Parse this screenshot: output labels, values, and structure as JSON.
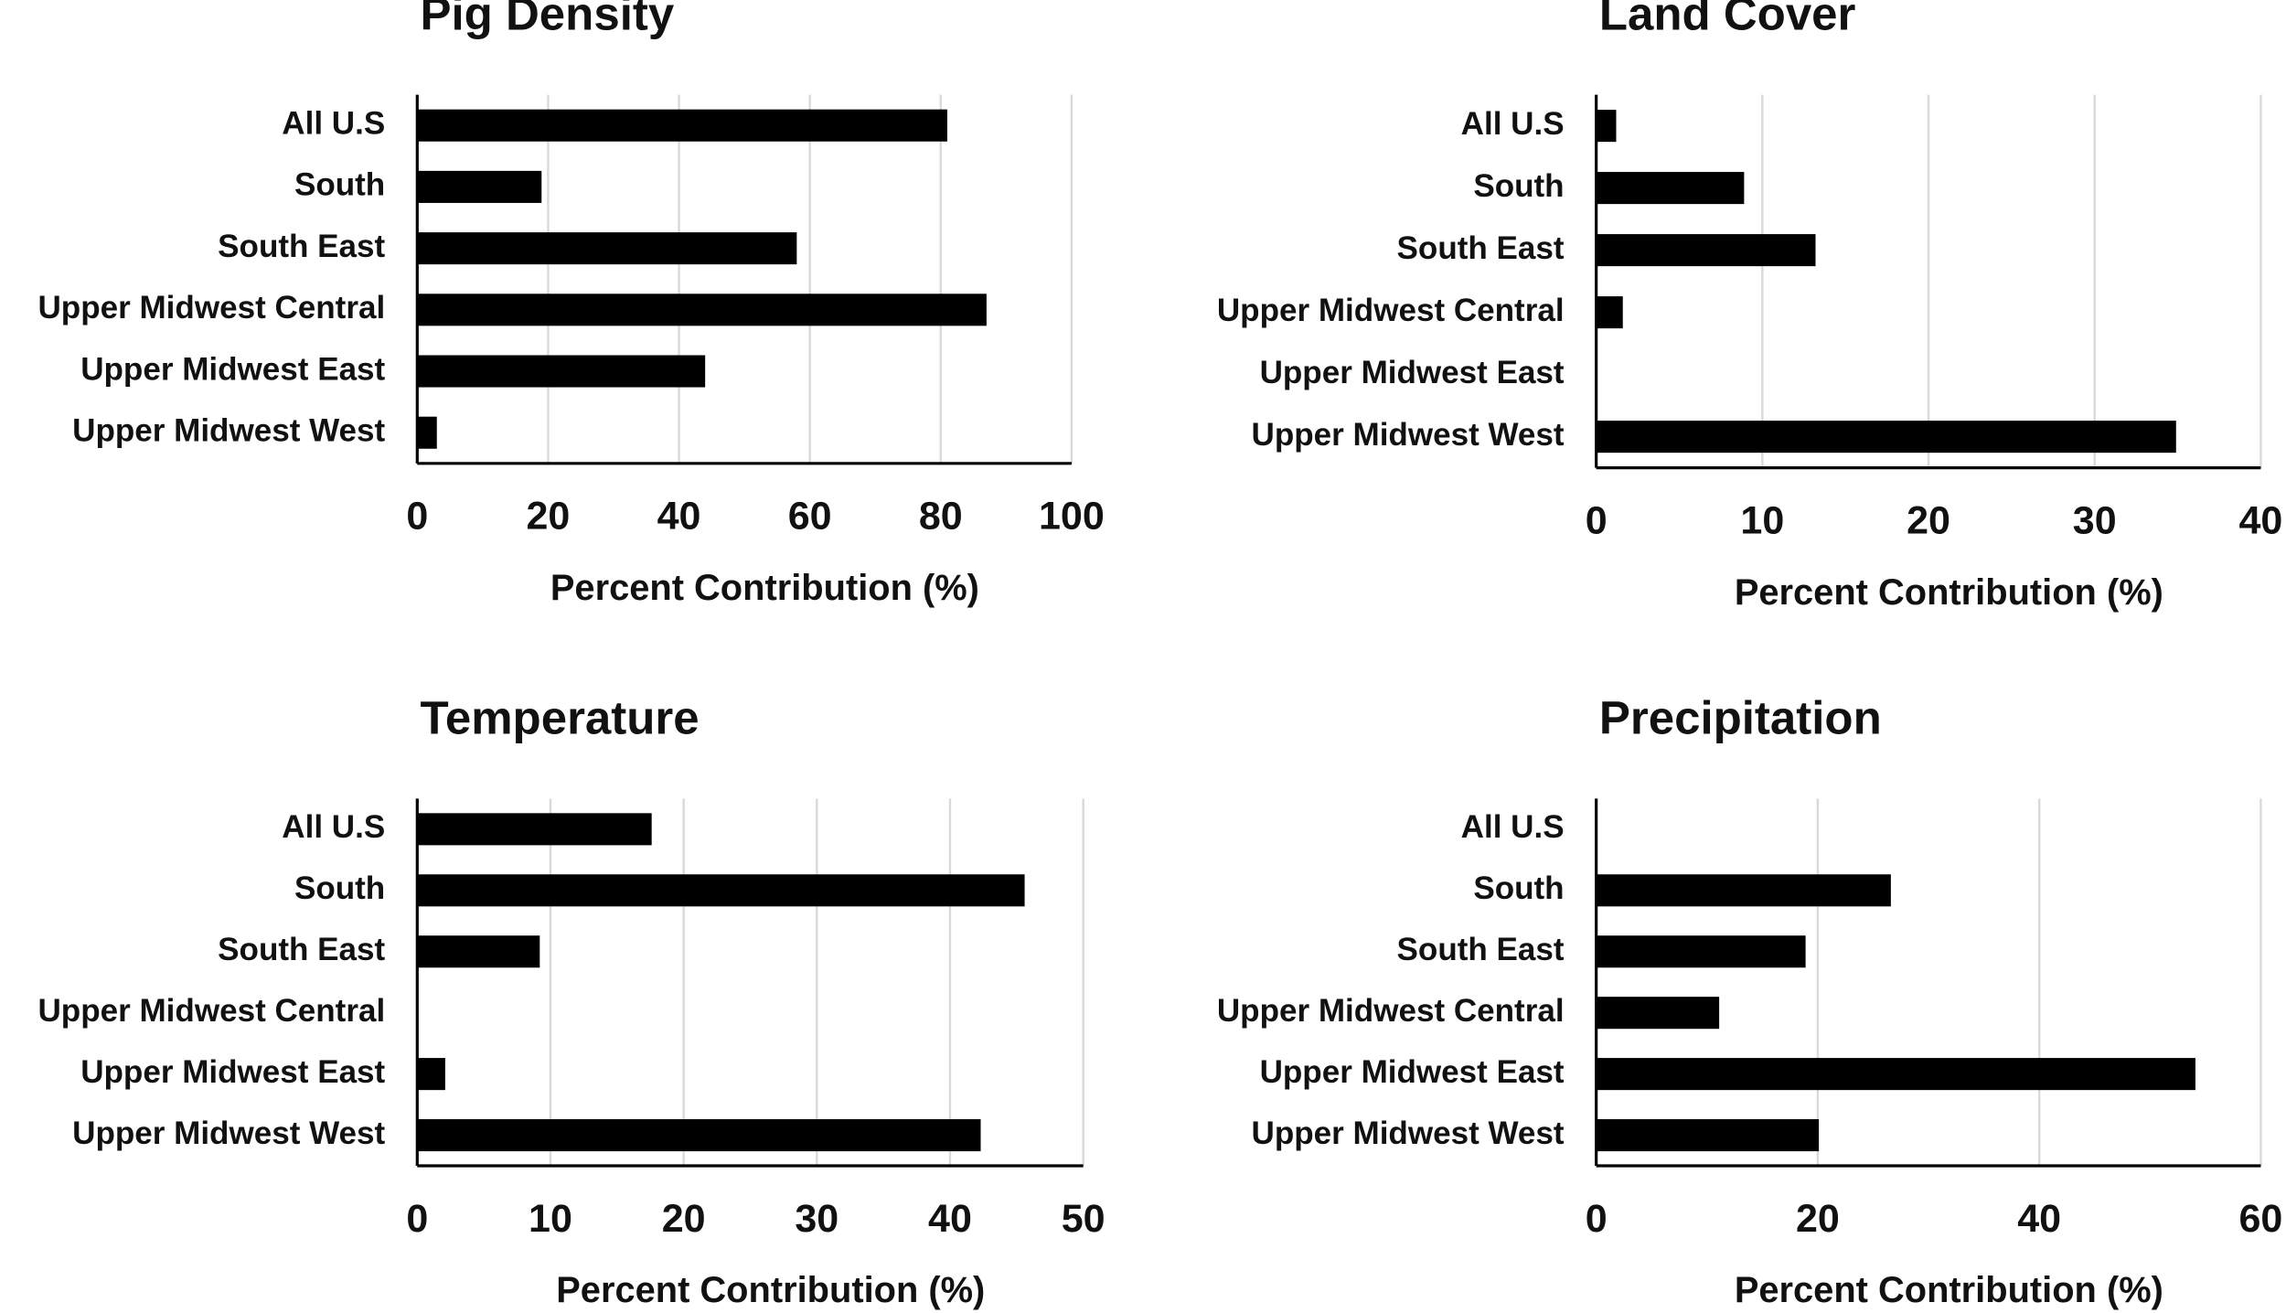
{
  "chart_data": [
    {
      "type": "bar",
      "title": "Pig Density",
      "x_label": "Percent Contribution (%)",
      "categories": [
        "All U.S",
        "South",
        "South East",
        "Upper Midwest Central",
        "Upper Midwest East",
        "Upper Midwest West"
      ],
      "values": [
        81,
        19,
        58,
        87,
        44,
        3
      ],
      "color": "#000000",
      "xlim": [
        0,
        100
      ],
      "xticks": [
        0,
        20,
        40,
        60,
        80,
        100
      ],
      "grid": true
    },
    {
      "type": "bar",
      "title": "Land Cover",
      "x_label": "Percent Contribution (%)",
      "categories": [
        "All U.S",
        "South",
        "South East",
        "Upper Midwest Central",
        "Upper Midwest East",
        "Upper Midwest West"
      ],
      "values": [
        1.2,
        8.9,
        13.2,
        1.6,
        0,
        34.9
      ],
      "color": "#000000",
      "xlim": [
        0,
        40
      ],
      "xticks": [
        0,
        10,
        20,
        30,
        40
      ],
      "grid": true
    },
    {
      "type": "bar",
      "title": "Temperature",
      "x_label": "Percent Contribution (%)",
      "categories": [
        "All U.S",
        "South",
        "South East",
        "Upper Midwest Central",
        "Upper Midwest East",
        "Upper Midwest West"
      ],
      "values": [
        17.6,
        45.6,
        9.2,
        0,
        2.1,
        42.3
      ],
      "color": "#000000",
      "xlim": [
        0,
        50
      ],
      "xticks": [
        0,
        10,
        20,
        30,
        40,
        50
      ],
      "grid": true
    },
    {
      "type": "bar",
      "title": "Precipitation",
      "x_label": "Percent Contribution (%)",
      "categories": [
        "All U.S",
        "South",
        "South East",
        "Upper Midwest Central",
        "Upper Midwest East",
        "Upper Midwest West"
      ],
      "values": [
        0,
        26.6,
        18.9,
        11.1,
        54.1,
        20.1
      ],
      "color": "#000000",
      "xlim": [
        0,
        60
      ],
      "xticks": [
        0,
        20,
        40,
        60
      ],
      "grid": true
    }
  ]
}
